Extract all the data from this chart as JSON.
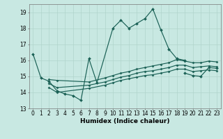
{
  "xlabel": "Humidex (Indice chaleur)",
  "xlim": [
    -0.5,
    23.5
  ],
  "ylim": [
    13,
    19.5
  ],
  "yticks": [
    13,
    14,
    15,
    16,
    17,
    18,
    19
  ],
  "xticks": [
    0,
    1,
    2,
    3,
    4,
    5,
    6,
    7,
    8,
    9,
    10,
    11,
    12,
    13,
    14,
    15,
    16,
    17,
    18,
    19,
    20,
    21,
    22,
    23
  ],
  "bg_color": "#c8e8e2",
  "grid_color": "#b0d4cc",
  "line_color": "#1a6055",
  "line1_x": [
    0,
    1,
    2,
    3,
    4,
    5,
    6,
    7,
    8,
    10,
    11,
    12,
    13,
    14,
    15,
    16,
    17,
    18,
    19
  ],
  "line1_y": [
    16.4,
    14.9,
    14.7,
    14.1,
    13.9,
    13.8,
    13.5,
    16.1,
    14.6,
    18.0,
    18.5,
    18.0,
    18.3,
    18.6,
    19.2,
    17.9,
    16.7,
    16.1,
    16.0
  ],
  "line2_x": [
    19,
    20,
    21,
    22,
    23
  ],
  "line2_y": [
    15.2,
    15.05,
    15.0,
    15.55,
    15.5
  ],
  "line3_x": [
    2,
    3,
    7,
    9,
    10,
    11,
    12,
    13,
    14,
    15,
    16,
    17,
    18,
    19,
    20,
    21,
    22,
    23
  ],
  "line3_y": [
    14.8,
    14.75,
    14.65,
    14.9,
    15.05,
    15.2,
    15.3,
    15.45,
    15.55,
    15.65,
    15.75,
    15.85,
    16.05,
    15.95,
    15.85,
    15.85,
    15.95,
    15.9
  ],
  "line4_x": [
    2,
    3,
    7,
    9,
    10,
    11,
    12,
    13,
    14,
    15,
    16,
    17,
    18,
    19,
    20,
    21,
    22,
    23
  ],
  "line4_y": [
    14.55,
    14.3,
    14.45,
    14.65,
    14.8,
    14.95,
    15.05,
    15.2,
    15.3,
    15.35,
    15.45,
    15.55,
    15.7,
    15.7,
    15.55,
    15.6,
    15.65,
    15.6
  ],
  "line5_x": [
    2,
    3,
    7,
    9,
    10,
    11,
    12,
    13,
    14,
    15,
    16,
    17,
    18,
    19,
    20,
    21,
    22,
    23
  ],
  "line5_y": [
    14.3,
    14.0,
    14.25,
    14.45,
    14.6,
    14.75,
    14.85,
    14.95,
    15.05,
    15.1,
    15.2,
    15.3,
    15.45,
    15.45,
    15.3,
    15.35,
    15.4,
    15.35
  ]
}
